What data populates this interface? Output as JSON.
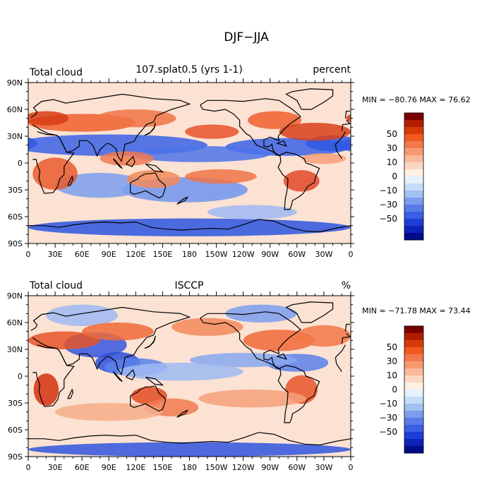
{
  "figure": {
    "title": "DJF−JJA"
  },
  "panels": [
    {
      "left_label": "Total cloud",
      "center_label": "107.splat0.5 (yrs 1-1)",
      "right_label": "percent",
      "stats": {
        "min": "-80.76",
        "max": "76.62",
        "text": "MIN = −80.76  MAX =  76.62"
      }
    },
    {
      "left_label": "Total cloud",
      "center_label": "ISCCP",
      "right_label": "%",
      "stats": {
        "min": "-71.78",
        "max": "73.44",
        "text": "MIN = −71.78  MAX =  73.44"
      }
    }
  ],
  "axes": {
    "lat_ticks": [
      "90N",
      "60N",
      "30N",
      "0",
      "30S",
      "60S",
      "90S"
    ],
    "lon_ticks": [
      "0",
      "30E",
      "60E",
      "90E",
      "120E",
      "150E",
      "180",
      "150W",
      "120W",
      "90W",
      "60W",
      "30W",
      "0"
    ]
  },
  "colorbar": {
    "tick_labels": [
      "50",
      "30",
      "10",
      "0",
      "−10",
      "−30",
      "−50"
    ],
    "colors": [
      "#7a0000",
      "#b01e00",
      "#d63a0a",
      "#f05a1e",
      "#f4784a",
      "#f79a72",
      "#f9b99a",
      "#fbd7c2",
      "#fdf0e4",
      "#e6f1fd",
      "#c6dcf8",
      "#a2c0f2",
      "#7c9cec",
      "#587be8",
      "#3a5ee4",
      "#1f3ed8",
      "#0f22b8",
      "#000c8a"
    ]
  },
  "colors": {
    "ocean_blue": "#2b55e0",
    "land_red": "#e8532a",
    "neutral": "#fbe8da",
    "coastline": "#000000"
  },
  "chart_data": {
    "type": "heatmap",
    "title": "DJF−JJA",
    "panels": [
      {
        "dataset": "107.splat0.5 (yrs 1-1)",
        "variable": "Total cloud",
        "units": "percent",
        "min": -80.76,
        "max": 76.62
      },
      {
        "dataset": "ISCCP",
        "variable": "Total cloud",
        "units": "%",
        "min": -71.78,
        "max": 73.44
      }
    ],
    "levels": [
      -70,
      -60,
      -50,
      -40,
      -30,
      -20,
      -10,
      -5,
      0,
      5,
      10,
      20,
      30,
      40,
      50,
      60,
      70
    ],
    "xlim": [
      0,
      360
    ],
    "ylim": [
      -90,
      90
    ]
  }
}
